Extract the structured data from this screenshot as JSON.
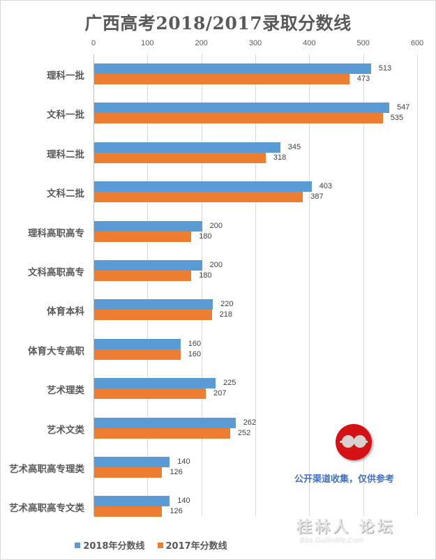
{
  "chart_data": {
    "type": "bar",
    "orientation": "horizontal",
    "title": "广西高考2018/2017录取分数线",
    "xlabel": "",
    "ylabel": "",
    "xlim": [
      0,
      600
    ],
    "x_ticks": [
      "0",
      "100",
      "200",
      "300",
      "400",
      "500",
      "600"
    ],
    "grid": true,
    "legend_position": "bottom",
    "categories": [
      "理科一批",
      "文科一批",
      "理科二批",
      "文科二批",
      "理科高职高专",
      "文科高职高专",
      "体育本科",
      "体育大专高职",
      "艺术理类",
      "艺术文类",
      "艺术高职高专理类",
      "艺术高职高专文类"
    ],
    "series": [
      {
        "name": "2018年分数线",
        "color": "#5b9bd5",
        "values": [
          513,
          547,
          345,
          403,
          200,
          200,
          220,
          160,
          225,
          262,
          140,
          140
        ]
      },
      {
        "name": "2017年分数线",
        "color": "#ed7d31",
        "values": [
          473,
          535,
          318,
          387,
          180,
          180,
          218,
          160,
          207,
          252,
          126,
          126
        ]
      }
    ],
    "annotations": [
      "公开渠道收集，仅供参考"
    ]
  },
  "watermark": {
    "main": "桂林人 论坛",
    "sub": "Bbs.Guilinlife.Com"
  }
}
